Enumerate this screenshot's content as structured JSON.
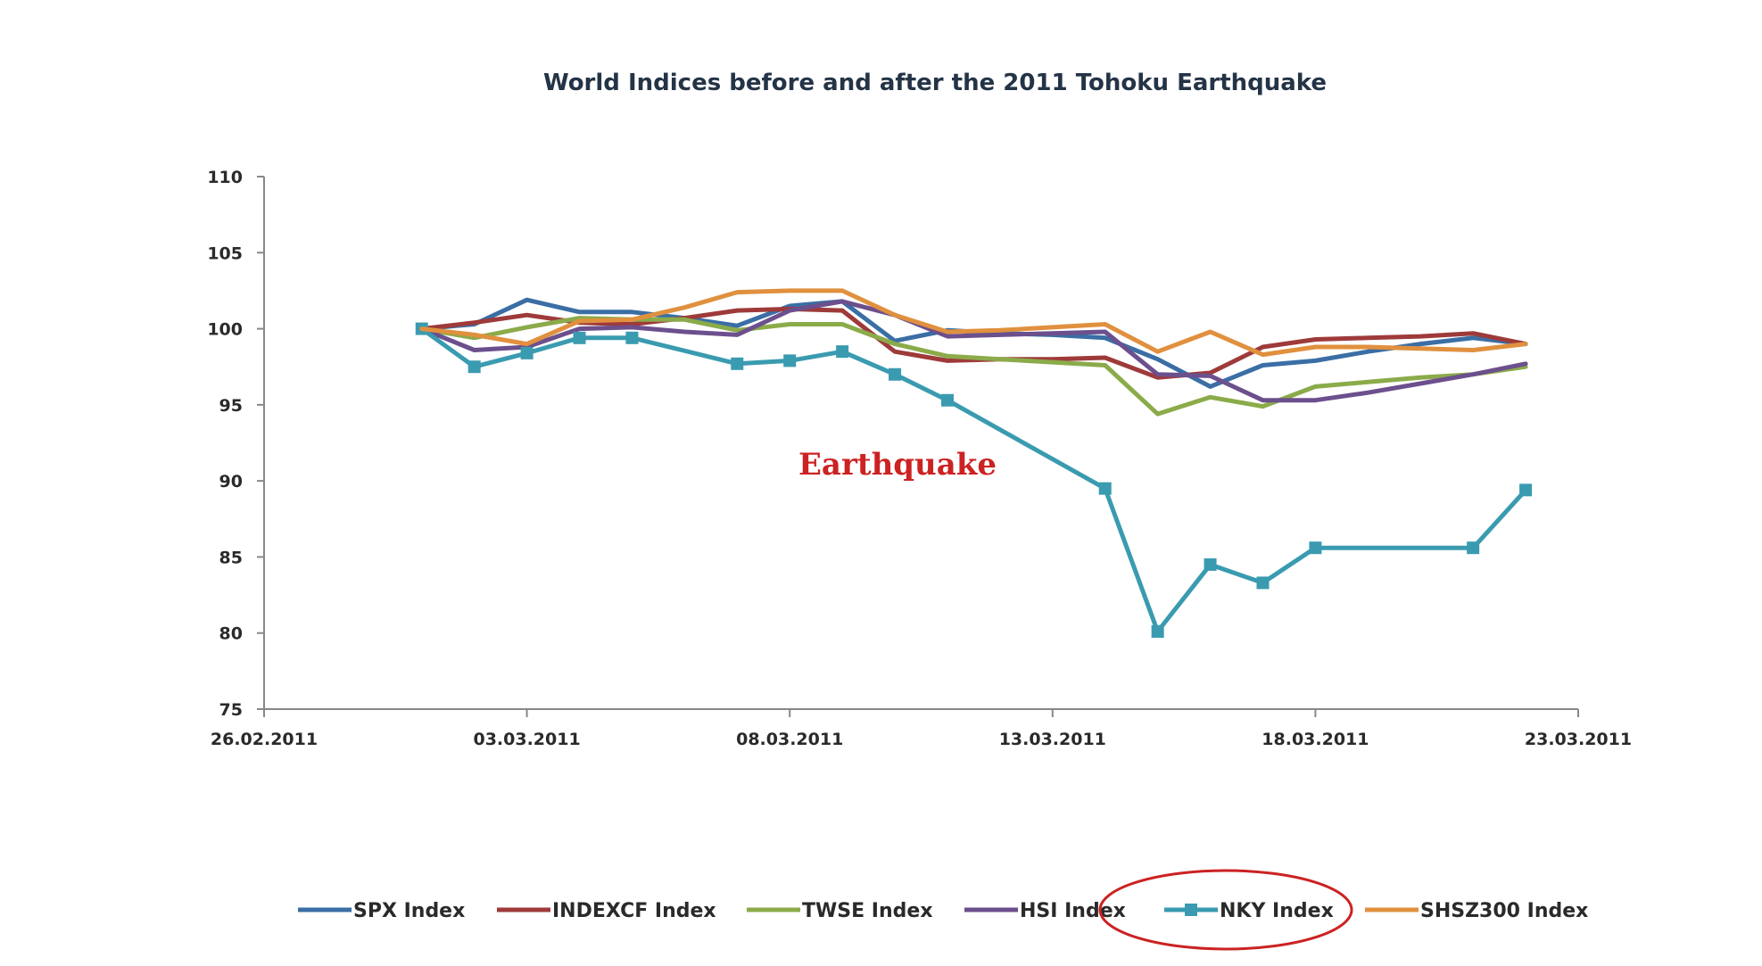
{
  "chart_data": {
    "type": "line",
    "title": "World Indices before and after the 2011 Tohoku Earthquake",
    "xlabel": "",
    "ylabel": "",
    "ylim": [
      75,
      110
    ],
    "yticks": [
      "75",
      "80",
      "85",
      "90",
      "95",
      "100",
      "105",
      "110"
    ],
    "xlim": [
      "2011-02-26",
      "2011-03-23"
    ],
    "xticks": [
      {
        "date": "2011-02-26",
        "label": "26.02.2011"
      },
      {
        "date": "2011-03-03",
        "label": "03.03.2011"
      },
      {
        "date": "2011-03-08",
        "label": "08.03.2011"
      },
      {
        "date": "2011-03-13",
        "label": "13.03.2011"
      },
      {
        "date": "2011-03-18",
        "label": "18.03.2011"
      },
      {
        "date": "2011-03-23",
        "label": "23.03.2011"
      }
    ],
    "grid": false,
    "legend_position": "bottom",
    "x": [
      "2011-03-01",
      "2011-03-02",
      "2011-03-03",
      "2011-03-04",
      "2011-03-05",
      "2011-03-06",
      "2011-03-07",
      "2011-03-08",
      "2011-03-09",
      "2011-03-10",
      "2011-03-11",
      "2011-03-12",
      "2011-03-13",
      "2011-03-14",
      "2011-03-15",
      "2011-03-16",
      "2011-03-17",
      "2011-03-18",
      "2011-03-19",
      "2011-03-20",
      "2011-03-21",
      "2011-03-22"
    ],
    "series": [
      {
        "name": "SPX Index",
        "color": "#3a6ea5",
        "marker": "none",
        "values": [
          100,
          100.3,
          101.9,
          101.1,
          101.1,
          100.7,
          100.2,
          101.5,
          101.8,
          99.2,
          99.9,
          99.7,
          99.6,
          99.4,
          98.0,
          96.2,
          97.6,
          97.9,
          98.5,
          99.0,
          99.4,
          99.0
        ]
      },
      {
        "name": "INDEXCF Index",
        "color": "#9e3a3a",
        "marker": "none",
        "values": [
          100,
          100.4,
          100.9,
          100.4,
          100.3,
          100.7,
          101.2,
          101.3,
          101.2,
          98.5,
          97.9,
          98.0,
          98.0,
          98.1,
          96.8,
          97.1,
          98.8,
          99.3,
          99.4,
          99.5,
          99.7,
          99.0
        ]
      },
      {
        "name": "TWSE Index",
        "color": "#8bab4a",
        "marker": "none",
        "values": [
          100,
          99.4,
          100.1,
          100.7,
          100.6,
          100.6,
          99.9,
          100.3,
          100.3,
          99.0,
          98.2,
          98.0,
          97.8,
          97.6,
          94.4,
          95.5,
          94.9,
          96.2,
          96.5,
          96.8,
          97.0,
          97.5
        ]
      },
      {
        "name": "HSI Index",
        "color": "#6c4f8d",
        "marker": "none",
        "values": [
          100,
          98.6,
          98.8,
          100.0,
          100.1,
          99.8,
          99.6,
          101.2,
          101.8,
          100.9,
          99.5,
          99.6,
          99.7,
          99.8,
          97.0,
          96.9,
          95.3,
          95.3,
          95.8,
          96.4,
          97.0,
          97.7
        ]
      },
      {
        "name": "NKY Index",
        "color": "#3a9bb0",
        "marker": "square",
        "values": [
          100,
          97.5,
          98.4,
          99.4,
          99.4,
          null,
          97.7,
          97.9,
          98.5,
          97.0,
          95.3,
          null,
          null,
          89.5,
          80.1,
          84.5,
          83.3,
          85.6,
          null,
          null,
          85.6,
          89.4
        ]
      },
      {
        "name": "SHSZ300 Index",
        "color": "#e0903e",
        "marker": "none",
        "values": [
          100,
          99.6,
          99.0,
          100.5,
          100.6,
          101.4,
          102.4,
          102.5,
          102.5,
          100.9,
          99.8,
          99.9,
          100.1,
          100.3,
          98.5,
          99.8,
          98.3,
          98.8,
          98.8,
          98.7,
          98.6,
          99.0
        ]
      }
    ],
    "annotations": [
      {
        "text": "Earthquake",
        "color": "#cc2222"
      }
    ],
    "highlight": {
      "series": "NKY Index",
      "shape": "ellipse",
      "color": "#cc2222"
    }
  }
}
